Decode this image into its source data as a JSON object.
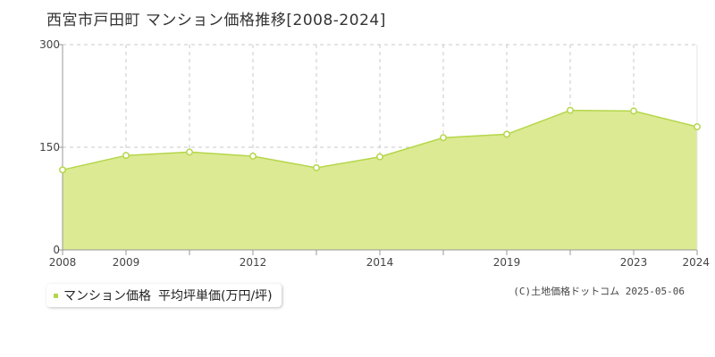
{
  "title": "西宮市戸田町 マンション価格推移[2008-2024]",
  "legend": {
    "series_label": "マンション価格",
    "unit_label": "平均坪単価(万円/坪)"
  },
  "source": "(C)土地価格ドットコム 2025-05-06",
  "colors": {
    "area_fill": "#dcea93",
    "line": "#b5d64a",
    "marker_fill": "#ffffff",
    "grid": "#c8c8c8",
    "axis": "#999999"
  },
  "chart_data": {
    "type": "area",
    "title": "西宮市戸田町 マンション価格推移[2008-2024]",
    "xlabel": "",
    "ylabel": "",
    "ylim": [
      0,
      300
    ],
    "y_ticks": [
      "0",
      "150",
      "300"
    ],
    "x_tick_labels": [
      "2008",
      "2009",
      "2012",
      "2014",
      "2019",
      "2023",
      "2024"
    ],
    "grid": true,
    "legend_position": "bottom-left",
    "series": [
      {
        "name": "マンション価格",
        "points": [
          {
            "x": "2008",
            "y": 117
          },
          {
            "x": "2009",
            "y": 138
          },
          {
            "x": "",
            "y": 143
          },
          {
            "x": "2012",
            "y": 137
          },
          {
            "x": "",
            "y": 120
          },
          {
            "x": "2014",
            "y": 136
          },
          {
            "x": "",
            "y": 164
          },
          {
            "x": "2019",
            "y": 169
          },
          {
            "x": "",
            "y": 204
          },
          {
            "x": "2023",
            "y": 203
          },
          {
            "x": "2024",
            "y": 180
          }
        ]
      }
    ]
  }
}
